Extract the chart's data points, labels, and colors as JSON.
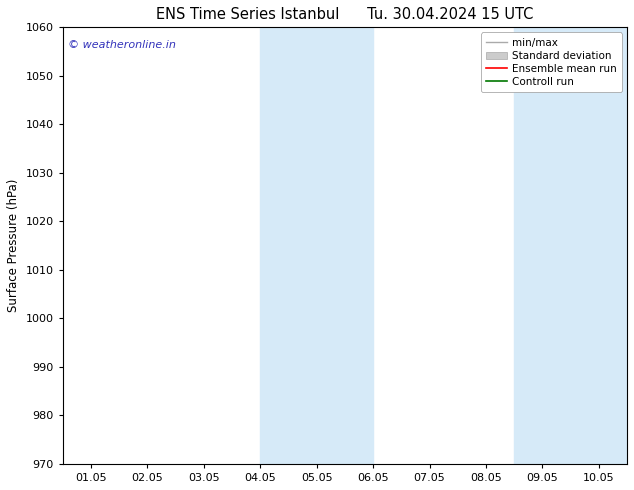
{
  "title_left": "ENS Time Series Istanbul",
  "title_right": "Tu. 30.04.2024 15 UTC",
  "ylabel": "Surface Pressure (hPa)",
  "ylim": [
    970,
    1060
  ],
  "yticks": [
    970,
    980,
    990,
    1000,
    1010,
    1020,
    1030,
    1040,
    1050,
    1060
  ],
  "xtick_labels": [
    "01.05",
    "02.05",
    "03.05",
    "04.05",
    "05.05",
    "06.05",
    "07.05",
    "08.05",
    "09.05",
    "10.05"
  ],
  "xtick_positions": [
    0,
    1,
    2,
    3,
    4,
    5,
    6,
    7,
    8,
    9
  ],
  "xlim": [
    -0.5,
    9.5
  ],
  "shaded_bands": [
    {
      "x_start": 3.0,
      "x_end": 5.0
    },
    {
      "x_start": 7.5,
      "x_end": 9.5
    }
  ],
  "shade_color": "#d6eaf8",
  "watermark": "© weatheronline.in",
  "watermark_color": "#3333bb",
  "legend_labels": [
    "min/max",
    "Standard deviation",
    "Ensemble mean run",
    "Controll run"
  ],
  "legend_line_color": "#aaaaaa",
  "legend_patch_color": "#cccccc",
  "legend_red": "#ff0000",
  "legend_green": "#007700",
  "bg_color": "#ffffff",
  "plot_bg_color": "#ffffff",
  "axis_color": "#000000",
  "title_fontsize": 10.5,
  "tick_fontsize": 8,
  "ylabel_fontsize": 8.5,
  "watermark_fontsize": 8,
  "legend_fontsize": 7.5
}
